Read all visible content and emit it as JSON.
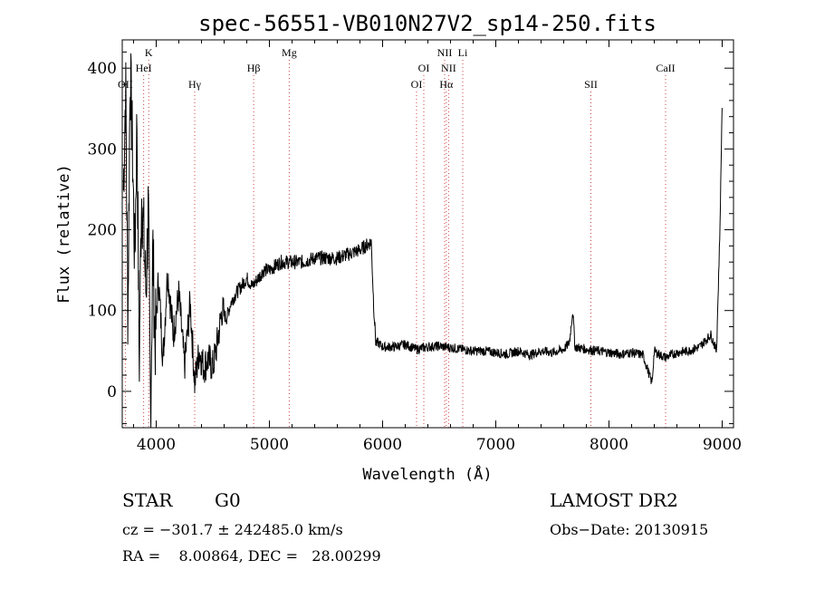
{
  "chart_data": {
    "type": "line",
    "title": "spec-56551-VB010N27V2_sp14-250.fits",
    "xlabel": "Wavelength (Å)",
    "ylabel": "Flux (relative)",
    "xlim": [
      3700,
      9100
    ],
    "ylim": [
      -45,
      435
    ],
    "xticks": [
      4000,
      5000,
      6000,
      7000,
      8000,
      9000
    ],
    "yticks": [
      0,
      100,
      200,
      300,
      400
    ],
    "grid": false,
    "line_markers": [
      {
        "name": "OII",
        "wavelength": 3727,
        "row": 3
      },
      {
        "name": "K",
        "wavelength": 3934,
        "row": 1
      },
      {
        "name": "HeI",
        "wavelength": 3889,
        "row": 2
      },
      {
        "name": "Hγ",
        "wavelength": 4340,
        "row": 3
      },
      {
        "name": "Hβ",
        "wavelength": 4861,
        "row": 2
      },
      {
        "name": "Mg",
        "wavelength": 5175,
        "row": 1
      },
      {
        "name": "OI",
        "wavelength": 6300,
        "row": 3
      },
      {
        "name": "OI",
        "wavelength": 6364,
        "row": 2
      },
      {
        "name": "NII",
        "wavelength": 6548,
        "row": 1
      },
      {
        "name": "Li",
        "wavelength": 6708,
        "row": 1
      },
      {
        "name": "NII",
        "wavelength": 6583,
        "row": 2
      },
      {
        "name": "Hα",
        "wavelength": 6563,
        "row": 3
      },
      {
        "name": "SII",
        "wavelength": 7840,
        "row": 3
      },
      {
        "name": "CaII",
        "wavelength": 8500,
        "row": 2
      }
    ],
    "series": [
      {
        "x": [
          3710,
          3730,
          3750,
          3770,
          3790,
          3810,
          3830,
          3850,
          3870,
          3890,
          3910,
          3930,
          3950,
          3970,
          3990,
          4020,
          4060,
          4100,
          4150,
          4200,
          4250,
          4300,
          4340,
          4380,
          4420,
          4460,
          4500,
          4540,
          4580,
          4620,
          4660,
          4700,
          4750,
          4800,
          4850,
          4900,
          4950,
          5000,
          5100,
          5200,
          5300,
          5400,
          5500,
          5600,
          5700,
          5800,
          5850,
          5900,
          5920,
          5940,
          5960,
          6000,
          6100,
          6200,
          6300,
          6400,
          6500,
          6600,
          6700,
          6800,
          6900,
          7000,
          7100,
          7200,
          7300,
          7400,
          7500,
          7600,
          7650,
          7680,
          7700,
          7800,
          7900,
          8000,
          8100,
          8200,
          8300,
          8380,
          8400,
          8450,
          8500,
          8600,
          8700,
          8800,
          8900,
          8950,
          8980,
          9000
        ],
        "y": [
          250,
          380,
          90,
          400,
          300,
          160,
          340,
          30,
          250,
          190,
          120,
          230,
          -30,
          180,
          60,
          140,
          40,
          150,
          70,
          120,
          30,
          110,
          10,
          50,
          30,
          40,
          30,
          60,
          100,
          90,
          110,
          120,
          130,
          140,
          130,
          140,
          150,
          150,
          160,
          160,
          160,
          165,
          165,
          165,
          170,
          175,
          180,
          185,
          110,
          60,
          60,
          55,
          55,
          58,
          52,
          55,
          56,
          54,
          52,
          50,
          50,
          48,
          46,
          50,
          45,
          50,
          48,
          52,
          60,
          100,
          55,
          52,
          50,
          48,
          46,
          48,
          45,
          10,
          50,
          45,
          42,
          48,
          50,
          55,
          70,
          50,
          200,
          360
        ]
      }
    ],
    "info": {
      "class": "STAR",
      "subclass": "G0",
      "survey": "LAMOST DR2",
      "cz": "cz = −301.7 ± 242485.0 km/s",
      "obs_date": "Obs−Date: 20130915",
      "radec": "RA =    8.00864, DEC =   28.00299"
    }
  }
}
